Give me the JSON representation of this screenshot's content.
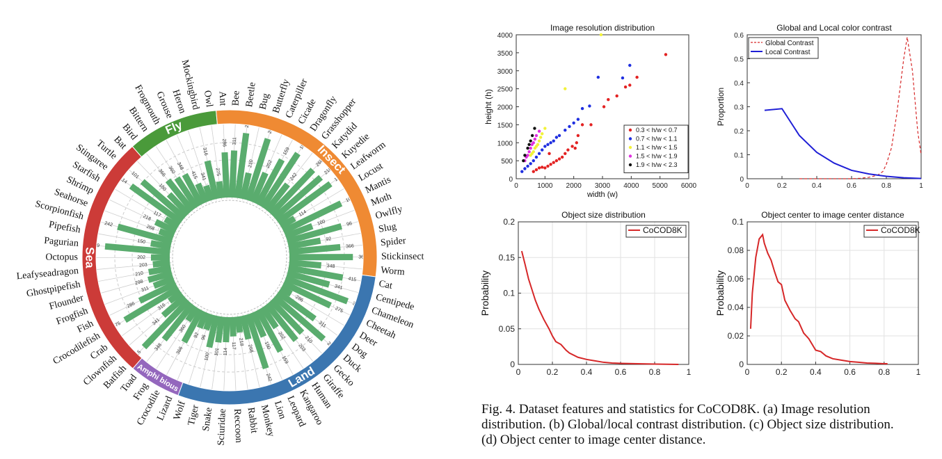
{
  "radial": {
    "groups": [
      {
        "name": "Fly",
        "color": "#4a9a3a",
        "categories": [
          "Bird",
          "Bittern",
          "Frogmouth",
          "Grouse",
          "Heron",
          "Mockingbird",
          "Owl"
        ]
      },
      {
        "name": "Insect",
        "color": "#ef8a33",
        "categories": [
          "Ant",
          "Bee",
          "Beetle",
          "Bug",
          "Butterfly",
          "Caterpiller",
          "Cicade",
          "Dragonfly",
          "Grasshopper",
          "Katydid",
          "Kuyedie",
          "Leafworm",
          "Locust",
          "Mantis",
          "Moth",
          "Owlfly",
          "Slug",
          "Spider",
          "Stickinsect",
          "Worm"
        ]
      },
      {
        "name": "Land",
        "color": "#3b76b0",
        "categories": [
          "Cat",
          "Centipede",
          "Chameleon",
          "Cheetah",
          "Deer",
          "Dog",
          "Duck",
          "Gecko",
          "Giraffe",
          "Human",
          "Kangaroo",
          "Leopard",
          "Lion",
          "Monkey",
          "Rabbit",
          "Reccoon",
          "Sciuridae",
          "Snake",
          "Tiger",
          "Wolf"
        ]
      },
      {
        "name": "Amphi bious",
        "color": "#9467bd",
        "categories": [
          "Lizard",
          "Crocodile",
          "Frog",
          "Toad"
        ]
      },
      {
        "name": "Sea",
        "color": "#cc3b38",
        "categories": [
          "Batfish",
          "Clownfish",
          "Crab",
          "Crocodilefish",
          "Fish",
          "Frogfish",
          "Flounder",
          "Ghostpipefish",
          "Leafyseadragon",
          "Octopus",
          "Pagurian",
          "Pipefish",
          "Scorpionfish",
          "Seahorse",
          "Shrimp",
          "Starfish",
          "Stingaree",
          "Turtle",
          "Bat"
        ]
      }
    ],
    "bar_labels": [
      "366",
      "360",
      "348",
      "415",
      "341",
      "316",
      "275",
      "286",
      "311",
      "298",
      "210",
      "203",
      "202",
      "159",
      "150",
      "242",
      "268",
      "218",
      "117",
      "114",
      "101",
      "100",
      "96",
      "92"
    ]
  },
  "chart_data": [
    {
      "type": "scatter",
      "title": "Image resolution distribution",
      "xlabel": "width (w)",
      "ylabel": "height (h)",
      "xlim": [
        0,
        6000
      ],
      "ylim": [
        0,
        4000
      ],
      "xticks": [
        "0",
        "1000",
        "2000",
        "3000",
        "4000",
        "5000",
        "6000"
      ],
      "yticks": [
        "0",
        "500",
        "1000",
        "1500",
        "2000",
        "2500",
        "3000",
        "3500",
        "4000"
      ],
      "legend_position": "bottom-right",
      "series": [
        {
          "name": "0.3 < h/w < 0.7",
          "color": "#e32222",
          "points": [
            [
              5200,
              3450
            ],
            [
              4200,
              2820
            ],
            [
              3950,
              2600
            ],
            [
              3800,
              2550
            ],
            [
              3500,
              2300
            ],
            [
              3200,
              2200
            ],
            [
              3050,
              2000
            ],
            [
              2600,
              1500
            ],
            [
              2300,
              1500
            ],
            [
              2150,
              1200
            ],
            [
              2100,
              1000
            ],
            [
              2050,
              850
            ],
            [
              1950,
              900
            ],
            [
              1800,
              800
            ],
            [
              1700,
              700
            ],
            [
              1600,
              600
            ],
            [
              1500,
              550
            ],
            [
              1400,
              500
            ],
            [
              1300,
              450
            ],
            [
              1200,
              400
            ],
            [
              1150,
              700
            ],
            [
              1100,
              350
            ],
            [
              1000,
              300
            ],
            [
              900,
              320
            ],
            [
              800,
              300
            ],
            [
              700,
              250
            ],
            [
              600,
              200
            ]
          ]
        },
        {
          "name": "0.7 < h/w < 1.1",
          "color": "#1f2fe0",
          "points": [
            [
              3950,
              3150
            ],
            [
              3700,
              2800
            ],
            [
              2850,
              2820
            ],
            [
              2550,
              2020
            ],
            [
              2300,
              1950
            ],
            [
              2150,
              1650
            ],
            [
              2000,
              1550
            ],
            [
              1850,
              1450
            ],
            [
              1700,
              1350
            ],
            [
              1500,
              1200
            ],
            [
              1400,
              1150
            ],
            [
              1300,
              1050
            ],
            [
              1200,
              1000
            ],
            [
              1100,
              950
            ],
            [
              1000,
              900
            ],
            [
              900,
              800
            ],
            [
              800,
              700
            ],
            [
              700,
              600
            ],
            [
              600,
              500
            ],
            [
              500,
              420
            ],
            [
              400,
              350
            ],
            [
              300,
              280
            ],
            [
              200,
              200
            ]
          ]
        },
        {
          "name": "1.1 < h/w < 1.5",
          "color": "#f2f23a",
          "points": [
            [
              2950,
              4000
            ],
            [
              1700,
              2500
            ],
            [
              1000,
              1400
            ],
            [
              900,
              1250
            ],
            [
              850,
              1150
            ],
            [
              800,
              1050
            ],
            [
              750,
              950
            ],
            [
              700,
              900
            ],
            [
              650,
              850
            ],
            [
              600,
              750
            ],
            [
              550,
              700
            ],
            [
              500,
              650
            ]
          ]
        },
        {
          "name": "1.5 < h/w < 1.9",
          "color": "#e030e0",
          "points": [
            [
              800,
              1320
            ],
            [
              700,
              1200
            ],
            [
              650,
              1100
            ],
            [
              600,
              1000
            ],
            [
              550,
              950
            ],
            [
              500,
              850
            ],
            [
              450,
              750
            ],
            [
              400,
              650
            ],
            [
              350,
              600
            ],
            [
              300,
              500
            ]
          ]
        },
        {
          "name": "1.9 < h/w < 2.3",
          "color": "#111111",
          "points": [
            [
              640,
              1400
            ],
            [
              560,
              1200
            ],
            [
              500,
              1050
            ],
            [
              450,
              950
            ],
            [
              400,
              850
            ],
            [
              300,
              650
            ],
            [
              250,
              500
            ]
          ]
        }
      ]
    },
    {
      "type": "line",
      "title": "Global and Local color contrast",
      "xlabel": "",
      "ylabel": "Proportion",
      "xlim": [
        0,
        1
      ],
      "ylim": [
        0,
        0.6
      ],
      "xticks": [
        "0",
        "0.2",
        "0.4",
        "0.6",
        "0.8",
        "1"
      ],
      "yticks": [
        "0",
        "0.1",
        "0.2",
        "0.3",
        "0.4",
        "0.5",
        "0.6"
      ],
      "legend_position": "top-left",
      "series": [
        {
          "name": "Global Contrast",
          "color": "#d62728",
          "dash": true,
          "x": [
            0.3,
            0.4,
            0.5,
            0.6,
            0.65,
            0.7,
            0.75,
            0.78,
            0.8,
            0.83,
            0.86,
            0.9,
            0.92,
            0.95,
            0.98,
            1.0
          ],
          "y": [
            0,
            0,
            0,
            0,
            0.002,
            0.006,
            0.015,
            0.03,
            0.06,
            0.13,
            0.27,
            0.5,
            0.59,
            0.45,
            0.2,
            0.1
          ]
        },
        {
          "name": "Local Contrast",
          "color": "#1f1fd6",
          "dash": false,
          "x": [
            0.1,
            0.2,
            0.3,
            0.4,
            0.5,
            0.6,
            0.7,
            0.8,
            0.9,
            1.0
          ],
          "y": [
            0.285,
            0.292,
            0.18,
            0.11,
            0.065,
            0.035,
            0.02,
            0.01,
            0.004,
            0.001
          ]
        }
      ]
    },
    {
      "type": "line",
      "title": "Object size distribution",
      "xlabel": "",
      "ylabel": "Probability",
      "xlim": [
        0,
        1
      ],
      "ylim": [
        0,
        0.2
      ],
      "xticks": [
        "0",
        "0.2",
        "0.4",
        "0.6",
        "0.8",
        "1"
      ],
      "yticks": [
        "0",
        "0.05",
        "0.1",
        "0.15",
        "0.2"
      ],
      "legend_position": "top-right",
      "series": [
        {
          "name": "CoCOD8K",
          "color": "#d62728",
          "x": [
            0.02,
            0.04,
            0.06,
            0.08,
            0.1,
            0.12,
            0.15,
            0.18,
            0.2,
            0.22,
            0.25,
            0.28,
            0.3,
            0.35,
            0.4,
            0.45,
            0.5,
            0.55,
            0.6,
            0.7,
            0.8,
            0.94
          ],
          "y": [
            0.159,
            0.14,
            0.12,
            0.105,
            0.09,
            0.078,
            0.063,
            0.05,
            0.04,
            0.032,
            0.028,
            0.02,
            0.016,
            0.01,
            0.007,
            0.005,
            0.003,
            0.002,
            0.0015,
            0.001,
            0.0005,
            0.0
          ]
        }
      ]
    },
    {
      "type": "line",
      "title": "Object center to image center distance",
      "xlabel": "",
      "ylabel": "Probability",
      "xlim": [
        0,
        1
      ],
      "ylim": [
        0,
        0.1
      ],
      "xticks": [
        "0",
        "0.2",
        "0.4",
        "0.6",
        "0.8",
        "1"
      ],
      "yticks": [
        "0",
        "0.02",
        "0.04",
        "0.06",
        "0.08",
        "0.1"
      ],
      "legend_position": "top-right",
      "series": [
        {
          "name": "CoCOD8K",
          "color": "#d62728",
          "x": [
            0.02,
            0.03,
            0.05,
            0.07,
            0.09,
            0.1,
            0.12,
            0.14,
            0.16,
            0.18,
            0.2,
            0.22,
            0.25,
            0.28,
            0.3,
            0.33,
            0.36,
            0.4,
            0.43,
            0.46,
            0.5,
            0.55,
            0.6,
            0.65,
            0.7,
            0.75,
            0.8,
            0.82
          ],
          "y": [
            0.025,
            0.05,
            0.075,
            0.088,
            0.091,
            0.085,
            0.078,
            0.073,
            0.065,
            0.058,
            0.056,
            0.045,
            0.038,
            0.032,
            0.03,
            0.022,
            0.018,
            0.01,
            0.009,
            0.006,
            0.004,
            0.003,
            0.002,
            0.0015,
            0.001,
            0.0008,
            0.0005,
            0.0005
          ]
        }
      ]
    }
  ],
  "caption": {
    "line1": "Fig. 4.  Dataset features and statistics for CoCOD8K. (a) Image resolution",
    "line2": "distribution. (b) Global/local contrast distribution. (c) Object size distribution.",
    "line3": "(d) Object center to image center distance."
  }
}
